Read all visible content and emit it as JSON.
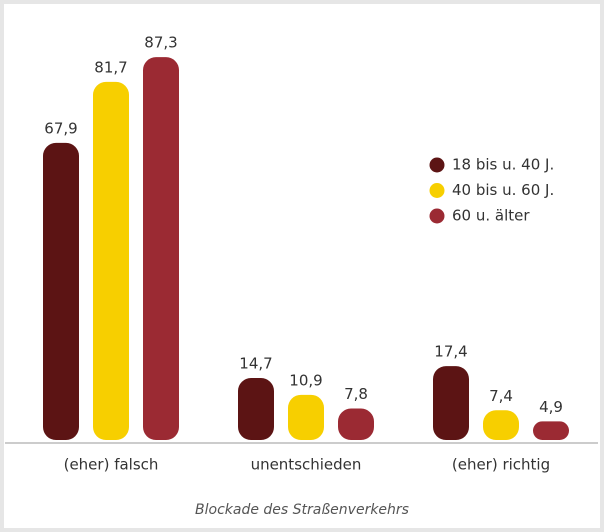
{
  "chart_data": {
    "type": "bar",
    "categories": [
      "(eher) falsch",
      "unentschieden",
      "(eher) richtig"
    ],
    "series": [
      {
        "name": "18 bis u. 40 J.",
        "color": "#5c1414",
        "values": [
          67.9,
          14.7,
          17.4
        ],
        "value_labels": [
          "67,9",
          "14,7",
          "17,4"
        ]
      },
      {
        "name": "40 bis u. 60 J.",
        "color": "#f7cf00",
        "values": [
          81.7,
          10.9,
          7.4
        ],
        "value_labels": [
          "81,7",
          "10,9",
          "7,4"
        ]
      },
      {
        "name": "60 u. älter",
        "color": "#9b2a33",
        "values": [
          87.3,
          7.8,
          4.9
        ],
        "value_labels": [
          "87,3",
          "7,8",
          "4,9"
        ]
      }
    ],
    "ylim": [
      0,
      100
    ],
    "xlabel": "Blockade des Straßenverkehrs"
  }
}
